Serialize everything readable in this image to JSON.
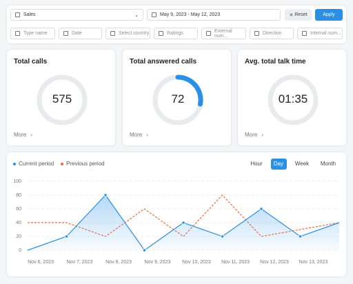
{
  "filters": {
    "team": "Sales",
    "date_range": "May 9, 2023 - May 12, 2023",
    "reset": "Reset",
    "apply": "Apply",
    "fields": [
      "Type name",
      "Date",
      "Select country",
      "Ratings",
      "External num...",
      "Direction",
      "Internal num..."
    ]
  },
  "cards": [
    {
      "title": "Total calls",
      "value": "575",
      "more": "More"
    },
    {
      "title": "Total answered calls",
      "value": "72",
      "more": "More"
    },
    {
      "title": "Avg. total talk time",
      "value": "01:35",
      "more": "More"
    }
  ],
  "chart_data": {
    "type": "line",
    "periods": [
      "Hour",
      "Day",
      "Week",
      "Month"
    ],
    "active_period": "Day",
    "categories": [
      "Nov 6, 2023",
      "Nov 7, 2023",
      "Nov 8, 2023",
      "Nov 9, 2023",
      "Nov 10, 2023",
      "Nov 11, 2023",
      "Nov 12, 2023",
      "Nov 13, 2023",
      null
    ],
    "series": [
      {
        "name": "Current period",
        "color": "#2b8fe6",
        "values": [
          0,
          20,
          80,
          0,
          40,
          20,
          60,
          20,
          40
        ]
      },
      {
        "name": "Previous period",
        "color": "#f26b3a",
        "values": [
          40,
          40,
          20,
          60,
          20,
          80,
          20,
          30,
          40
        ]
      }
    ],
    "ylim": [
      0,
      100
    ],
    "yticks": [
      0,
      20,
      40,
      60,
      80,
      100
    ],
    "grid": true
  }
}
